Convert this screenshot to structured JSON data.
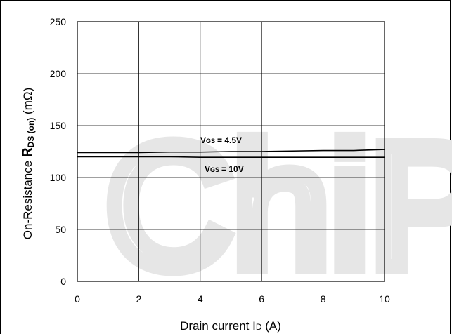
{
  "chart_data": {
    "type": "line",
    "xlabel_main": "Drain current I",
    "xlabel_sub": "D",
    "xlabel_unit": " (A)",
    "ylabel_prefix": "On-Resistance ",
    "ylabel_symbol": "R",
    "ylabel_sub": "DS (on)",
    "ylabel_unit": " (mΩ)",
    "xlim": [
      0,
      10
    ],
    "ylim": [
      0,
      250
    ],
    "x_ticks": [
      "0",
      "2",
      "4",
      "6",
      "8",
      "10"
    ],
    "y_ticks": [
      "0",
      "50",
      "100",
      "150",
      "200",
      "250"
    ],
    "grid": true,
    "series": [
      {
        "name": "VGS = 4.5V",
        "label_main": "V",
        "label_sub": "GS",
        "label_value": "= 4.5V",
        "x": [
          0,
          1,
          2,
          3,
          4,
          5,
          6,
          7,
          8,
          9,
          10
        ],
        "y": [
          124,
          124,
          124,
          124.5,
          124.5,
          125,
          125,
          125.5,
          126,
          126,
          127
        ]
      },
      {
        "name": "VGS = 10V",
        "label_main": "V",
        "label_sub": "GS",
        "label_value": "= 10V",
        "x": [
          0,
          1,
          2,
          3,
          4,
          5,
          6,
          7,
          8,
          9,
          10
        ],
        "y": [
          120,
          120,
          120,
          120,
          119.5,
          119.5,
          119.5,
          119.5,
          119.5,
          119.5,
          119.5
        ]
      }
    ]
  },
  "watermark": "ChiP"
}
